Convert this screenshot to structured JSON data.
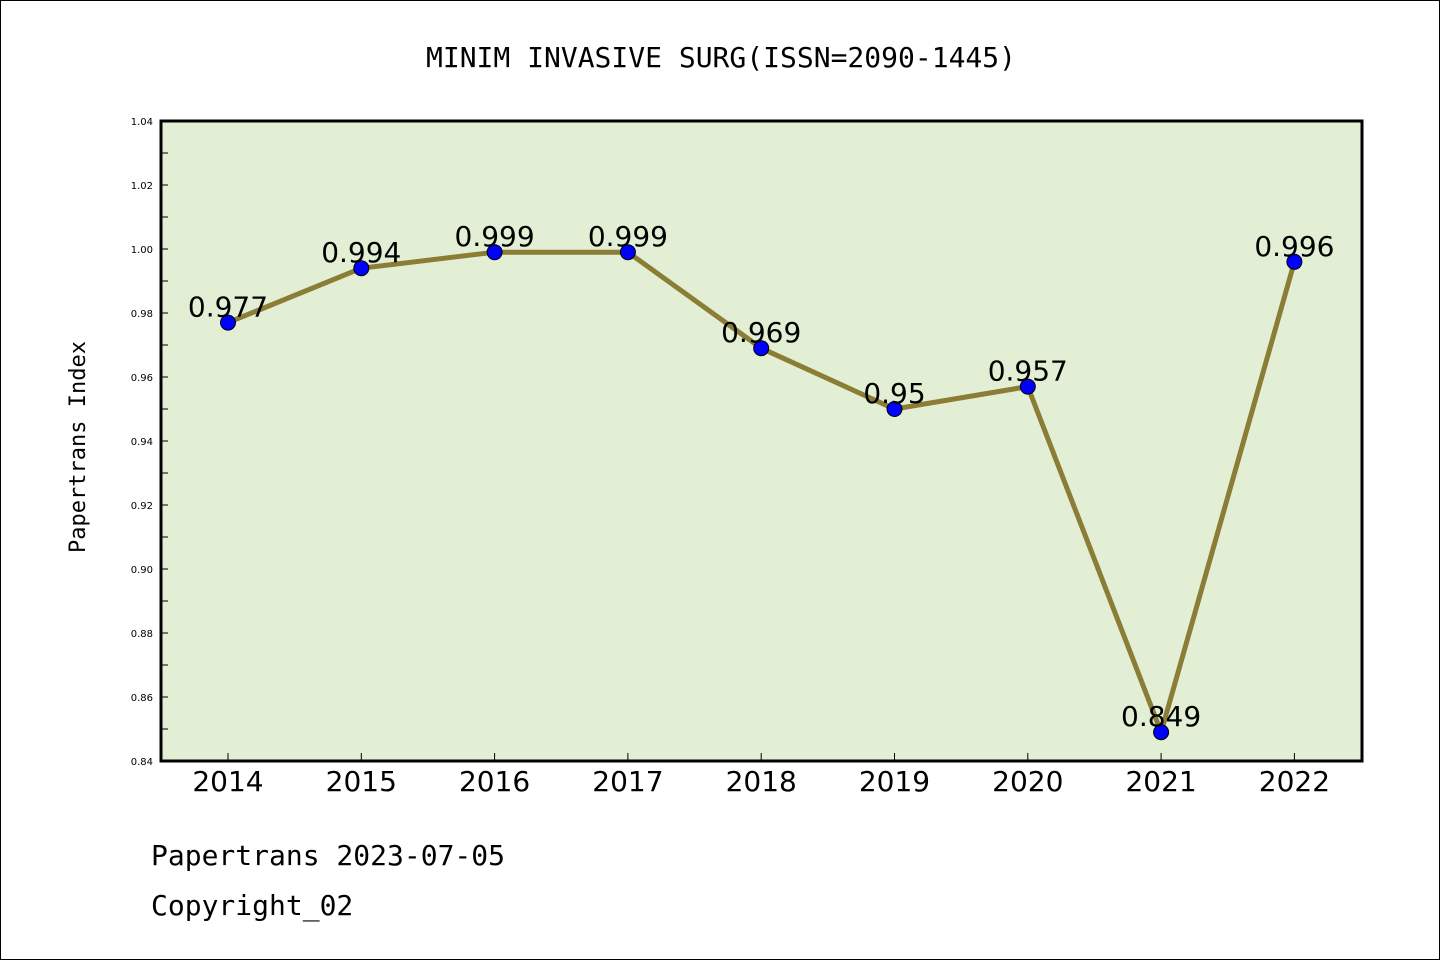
{
  "chart_data": {
    "type": "line",
    "title": "MINIM INVASIVE SURG(ISSN=2090-1445)",
    "xlabel": "",
    "ylabel": "Papertrans Index",
    "categories": [
      "2014",
      "2015",
      "2016",
      "2017",
      "2018",
      "2019",
      "2020",
      "2021",
      "2022"
    ],
    "values": [
      0.977,
      0.994,
      0.999,
      0.999,
      0.969,
      0.95,
      0.957,
      0.849,
      0.996
    ],
    "data_labels": [
      "0.977",
      "0.994",
      "0.999",
      "0.999",
      "0.969",
      "0.95",
      "0.957",
      "0.849",
      "0.996"
    ],
    "ylim": [
      0.84,
      1.04
    ],
    "yticks": [
      "0.84",
      "0.86",
      "0.88",
      "0.90",
      "0.92",
      "0.94",
      "0.96",
      "0.98",
      "1.00",
      "1.02",
      "1.04"
    ],
    "grid": false,
    "legend": "none",
    "colors": {
      "plot_background": "#e2efd4",
      "line": "#8b7d35",
      "marker": "#0000ff"
    }
  },
  "footer": {
    "line1": "Papertrans 2023-07-05",
    "line2": "Copyright_02"
  }
}
